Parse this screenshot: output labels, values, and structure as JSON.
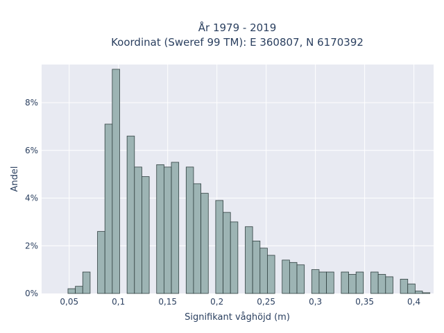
{
  "chart_data": {
    "type": "bar",
    "title_line1": "År 1979 - 2019",
    "title_line2": "Koordinat (Sweref 99 TM): E 360807, N 6170392",
    "xlabel": "Signifikant våghöjd (m)",
    "ylabel": "Andel",
    "xlim": [
      0.022,
      0.42
    ],
    "ylim": [
      0,
      0.096
    ],
    "x_ticks": [
      0.05,
      0.1,
      0.15,
      0.2,
      0.25,
      0.3,
      0.35,
      0.4
    ],
    "x_tick_labels": [
      "0,05",
      "0,1",
      "0,15",
      "0,2",
      "0,25",
      "0,3",
      "0,35",
      "0,4"
    ],
    "y_ticks": [
      0,
      0.02,
      0.04,
      0.06,
      0.08
    ],
    "y_tick_labels": [
      "0%",
      "2%",
      "4%",
      "6%",
      "8%"
    ],
    "bin_width": 0.0075,
    "x": [
      0.0525,
      0.06,
      0.0675,
      0.0825,
      0.09,
      0.0975,
      0.1125,
      0.12,
      0.1275,
      0.1425,
      0.15,
      0.1575,
      0.1725,
      0.18,
      0.1875,
      0.2025,
      0.21,
      0.2175,
      0.2325,
      0.24,
      0.2475,
      0.255,
      0.27,
      0.2775,
      0.285,
      0.3,
      0.3075,
      0.315,
      0.33,
      0.3375,
      0.345,
      0.36,
      0.3675,
      0.375,
      0.39,
      0.3975,
      0.405,
      0.4125
    ],
    "values": [
      0.002,
      0.003,
      0.009,
      0.026,
      0.071,
      0.094,
      0.066,
      0.053,
      0.049,
      0.054,
      0.053,
      0.055,
      0.053,
      0.046,
      0.042,
      0.039,
      0.034,
      0.03,
      0.028,
      0.022,
      0.019,
      0.016,
      0.014,
      0.013,
      0.012,
      0.01,
      0.009,
      0.009,
      0.009,
      0.008,
      0.009,
      0.009,
      0.008,
      0.007,
      0.006,
      0.004,
      0.001,
      0.0003
    ],
    "bar_fill": "#9db4b4",
    "bar_stroke": "#2f3f3f",
    "plot_background": "#e8eaf2",
    "grid": true,
    "legend": false
  }
}
